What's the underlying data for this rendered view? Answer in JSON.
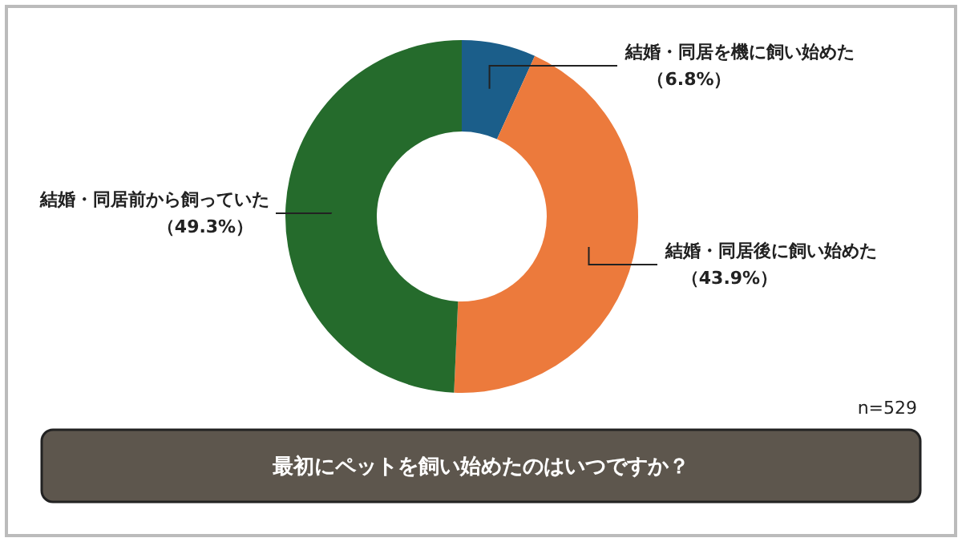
{
  "chart_data": {
    "type": "donut",
    "title": "最初にペットを飼い始めたのはいつですか？",
    "categories": [
      "結婚・同居を機に飼い始めた",
      "結婚・同居後に飼い始めた",
      "結婚・同居前から飼っていた"
    ],
    "values": [
      6.8,
      43.9,
      49.3
    ],
    "colors": [
      "#1b5e8a",
      "#ec7a3c",
      "#256b2c"
    ],
    "value_labels": [
      "（6.8%）",
      "（43.9%）",
      "（49.3%）"
    ],
    "annotations": [
      "n=529"
    ]
  }
}
